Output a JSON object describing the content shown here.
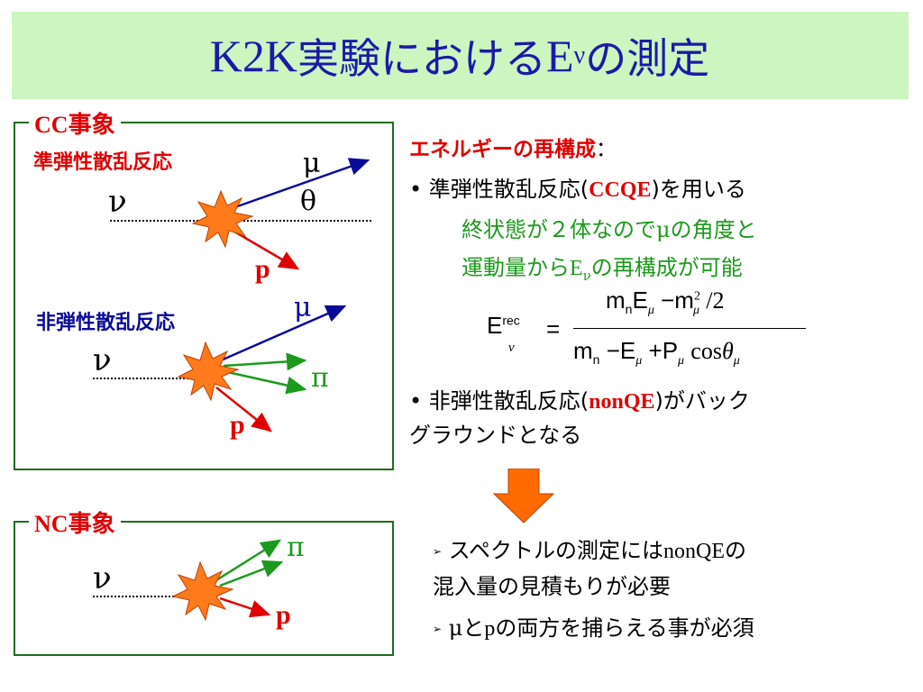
{
  "title": {
    "prefix": "K2K",
    "middle": "実験における",
    "var": "E",
    "sub": "ν",
    "suffix": "の測定"
  },
  "cc_box": {
    "legend_prefix": "CC",
    "legend_suffix": "事象",
    "qe_label": "準弾性散乱反応",
    "nonqe_label": "非弾性散乱反応",
    "nu": "ν",
    "mu": "μ",
    "theta": "θ",
    "p": "p",
    "pi": "π"
  },
  "nc_box": {
    "legend_prefix": "NC",
    "legend_suffix": "事象",
    "nu": "ν",
    "pi": "π",
    "p": "p"
  },
  "right": {
    "heading": "エネルギーの再構成",
    "heading_colon": "：",
    "b1_text": "• 準弾性散乱反応(",
    "b1_bold": "CCQE",
    "b1_tail": ")を用いる",
    "g1_a": "終状態が２体なので",
    "g1_mu": "μ",
    "g1_b": "の角度と",
    "g2_a": "運動量から",
    "g2_e": "E",
    "g2_nu": "ν",
    "g2_b": "の再構成が可能",
    "b2_text": "• 非弾性散乱反応(",
    "b2_bold": "nonQE",
    "b2_tail": ")がバック",
    "b2_line2": "グラウンドとなる",
    "c1_a": "スペクトルの測定には",
    "c1_b": "nonQE",
    "c1_c": "の",
    "c1_line2": "混入量の見積もりが必要",
    "c2_mu": "μ",
    "c2_and": "と",
    "c2_p": "p",
    "c2_tail": "の両方を捕らえる事が必須",
    "arrow_bullet": "➢"
  },
  "formula": {
    "lhs": "E",
    "lhs_sup": "rec",
    "lhs_sub": "ν",
    "eq": "=",
    "num_mn": "m",
    "num_n": "n",
    "num_E": "E",
    "num_mu": "μ",
    "minus": "−",
    "num_m": "m",
    "num_2": "2",
    "slash": "/",
    "two": "2",
    "den_mn": "m",
    "den_n": "n",
    "den_E": "E",
    "den_mu": "μ",
    "plus": "+",
    "den_P": "P",
    "cos": "cos",
    "theta": "θ"
  },
  "colors": {
    "title": "#1a1aa8",
    "title_bg": "#ccf5c0",
    "red": "#e00000",
    "green": "#1d9a1d",
    "box": "#1c6e1c",
    "blue": "#0a0a9a",
    "star": "#ff7a1a",
    "arrow": "#ff6a00"
  }
}
